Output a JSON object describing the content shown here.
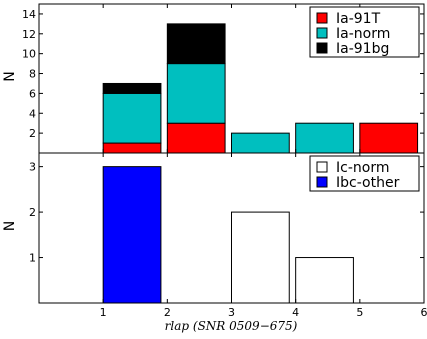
{
  "chart_data": [
    {
      "type": "bar",
      "stacked": true,
      "panel": "top",
      "ylabel": "N",
      "xlim": [
        0,
        6
      ],
      "ylim": [
        0,
        15
      ],
      "yticks": [
        2,
        4,
        6,
        8,
        10,
        12,
        14
      ],
      "bins": [
        [
          1,
          1.9
        ],
        [
          2,
          2.9
        ],
        [
          3,
          3.9
        ],
        [
          4,
          4.9
        ],
        [
          5,
          5.9
        ]
      ],
      "series": [
        {
          "name": "Ia-91T",
          "color": "#ff0000",
          "values": [
            1,
            3,
            0,
            0,
            3
          ]
        },
        {
          "name": "Ia-norm",
          "color": "#00bfbf",
          "values": [
            5,
            6,
            2,
            3,
            0
          ]
        },
        {
          "name": "Ia-91bg",
          "color": "#000000",
          "values": [
            1,
            4,
            0,
            0,
            0
          ]
        }
      ],
      "legend": "top-right"
    },
    {
      "type": "bar",
      "panel": "bottom",
      "ylabel": "N",
      "xlabel": "rlap (SNR 0509−675)",
      "xlim": [
        0,
        6
      ],
      "ylim": [
        0,
        3.3
      ],
      "yticks": [
        1,
        2,
        3
      ],
      "xticks": [
        "1",
        "2",
        "3",
        "4",
        "5",
        "6"
      ],
      "bins": [
        [
          1,
          1.9
        ],
        [
          2,
          2.9
        ],
        [
          3,
          3.9
        ],
        [
          4,
          4.9
        ],
        [
          5,
          5.9
        ]
      ],
      "series": [
        {
          "name": "Ic-norm",
          "color": "#ffffff",
          "values": [
            0,
            0,
            2,
            1,
            0
          ]
        },
        {
          "name": "Ibc-other",
          "color": "#0000ff",
          "values": [
            3,
            0,
            0,
            0,
            0
          ]
        }
      ],
      "legend": "top-right"
    }
  ]
}
